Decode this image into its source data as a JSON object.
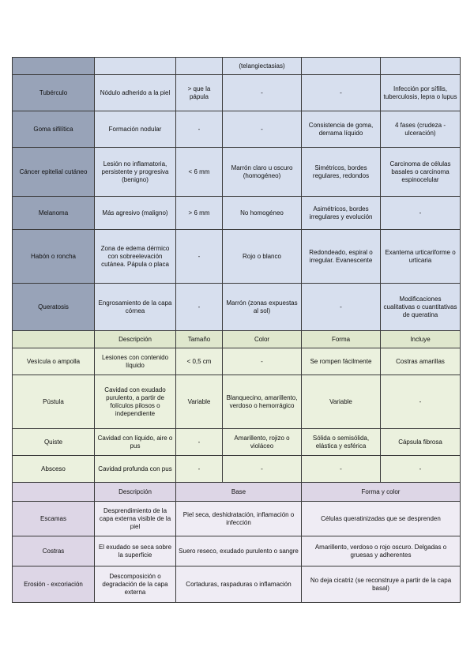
{
  "section_blue": {
    "rows": [
      {
        "label": "",
        "cells": [
          "",
          "",
          "(telangiectasias)",
          "",
          ""
        ]
      },
      {
        "label": "Tubérculo",
        "cells": [
          "Nódulo adherido a la piel",
          "> que la pápula",
          "-",
          "-",
          "Infección por sífilis, tuberculosis, lepra o lupus"
        ]
      },
      {
        "label": "Goma sifilítica",
        "cells": [
          "Formación nodular",
          "-",
          "-",
          "Consistencia de goma, derrama líquido",
          "4 fases (crudeza - ulceración)"
        ]
      },
      {
        "label": "Cáncer epitelial cutáneo",
        "cells": [
          "Lesión no inflamatoria, persistente y progresiva (benigno)",
          "< 6 mm",
          "Marrón claro u oscuro (homogéneo)",
          "Simétricos, bordes regulares, redondos",
          "Carcinoma de células basales o carcinoma espinocelular"
        ]
      },
      {
        "label": "Melanoma",
        "cells": [
          "Más agresivo (maligno)",
          "> 6 mm",
          "No homogéneo",
          "Asimétricos, bordes irregulares y evolución",
          "-"
        ]
      },
      {
        "label": "Habón o roncha",
        "cells": [
          "Zona de edema dérmico con sobreelevación cutánea. Pápula o placa",
          "-",
          "Rojo o blanco",
          "Redondeado, espiral o irregular. Evanescente",
          "Exantema urticariforme o urticaria"
        ]
      },
      {
        "label": "Queratosis",
        "cells": [
          "Engrosamiento de la capa córnea",
          "-",
          "Marrón (zonas expuestas al sol)",
          "-",
          "Modificaciones cualitativas o cuantitativas de queratina"
        ]
      }
    ]
  },
  "section_green": {
    "headers": [
      "",
      "Descripción",
      "Tamaño",
      "Color",
      "Forma",
      "Incluye"
    ],
    "rows": [
      {
        "label": "Vesícula o ampolla",
        "cells": [
          "Lesiones con contenido líquido",
          "< 0,5 cm",
          "-",
          "Se rompen fácilmente",
          "Costras amarillas"
        ]
      },
      {
        "label": "Pústula",
        "cells": [
          "Cavidad con exudado purulento, a partir de folículos pilosos o independiente",
          "Variable",
          "Blanquecino, amarillento, verdoso o hemorrágico",
          "Variable",
          "-"
        ]
      },
      {
        "label": "Quiste",
        "cells": [
          "Cavidad con líquido, aire o pus",
          "-",
          "Amarillento, rojizo o violáceo",
          "Sólida o semisólida, elástica y esférica",
          "Cápsula fibrosa"
        ]
      },
      {
        "label": "Absceso",
        "cells": [
          "Cavidad profunda con pus",
          "-",
          "-",
          "-",
          "-"
        ]
      }
    ]
  },
  "section_purple": {
    "headers": [
      "",
      "Descripción",
      "Base",
      "Forma y color"
    ],
    "rows": [
      {
        "label": "Escamas",
        "cells": [
          "Desprendimiento de la capa externa visible de la piel",
          "Piel seca, deshidratación, inflamación o infección",
          "Células queratinizadas que se desprenden"
        ]
      },
      {
        "label": "Costras",
        "cells": [
          "El exudado se seca sobre la superficie",
          "Suero reseco, exudado purulento o sangre",
          "Amarillento, verdoso o rojo oscuro. Delgadas o gruesas y adherentes"
        ]
      },
      {
        "label": "Erosión - excoriación",
        "cells": [
          "Descomposición o degradación de la capa externa",
          "Cortaduras, raspaduras o inflamación",
          "No deja cicatriz (se reconstruye a partir de la capa basal)"
        ]
      }
    ]
  },
  "colors": {
    "blue_label": "#98a3b8",
    "blue_cell": "#d7dfee",
    "green_header": "#dfe7cd",
    "green_cell": "#ebf1de",
    "purple_header": "#ddd6e6",
    "purple_cell": "#efecf4"
  }
}
